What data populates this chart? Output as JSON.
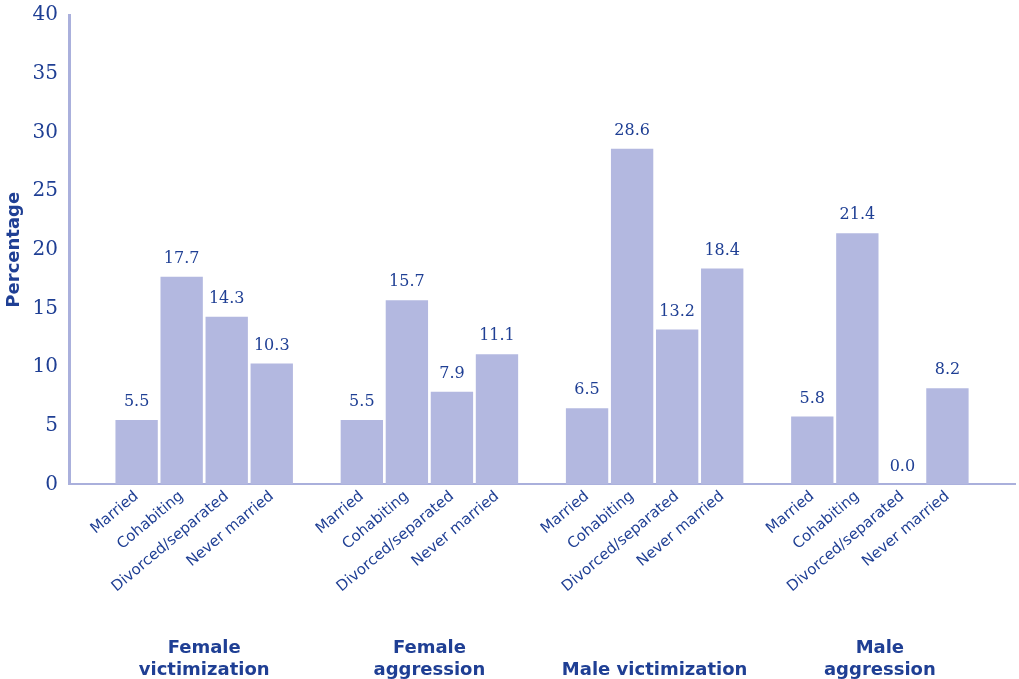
{
  "chart_data": {
    "type": "bar",
    "ylabel": "Percentage",
    "categories": [
      null,
      "Married",
      "Cohabiting",
      "Divorced/separated",
      "Never married",
      null,
      "Married",
      "Cohabiting",
      "Divorced/separated",
      "Never married",
      null,
      "Married",
      "Cohabiting",
      "Divorced/separated",
      "Never married",
      null,
      "Married",
      "Cohabiting",
      "Divorced/separated",
      "Never married",
      null
    ],
    "values": [
      null,
      5.5,
      17.7,
      14.3,
      10.3,
      null,
      5.5,
      15.7,
      7.9,
      11.1,
      null,
      6.5,
      28.6,
      13.2,
      18.4,
      null,
      5.8,
      21.4,
      0.0,
      8.2,
      null
    ],
    "value_labels": [
      null,
      "5.5",
      "17.7",
      "14.3",
      "10.3",
      null,
      "5.5",
      "15.7",
      "7.9",
      "11.1",
      null,
      "6.5",
      "28.6",
      "13.2",
      "18.4",
      null,
      "5.8",
      "21.4",
      "0.0",
      "8.2",
      null
    ],
    "color": "#b3b8e0",
    "ylim": [
      0,
      40
    ],
    "yticks": [
      0,
      5,
      10,
      15,
      20,
      25,
      30,
      35,
      40
    ],
    "grid": false,
    "legend": false,
    "annotations": [
      "Female\nvictimization",
      "Female\naggression",
      "Male victimization",
      "Male\naggression"
    ]
  }
}
